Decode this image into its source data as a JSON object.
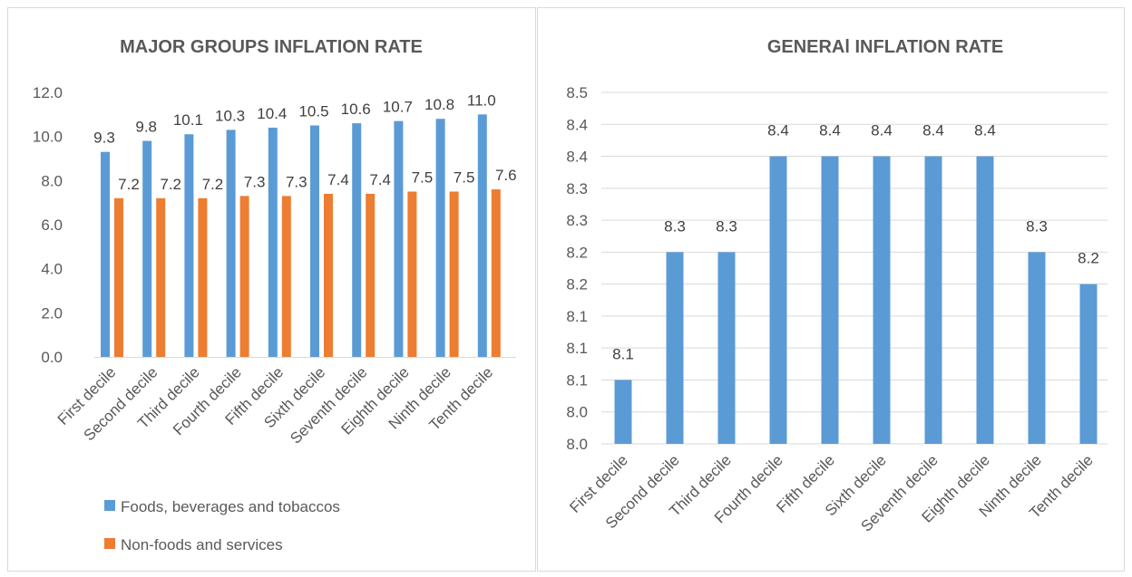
{
  "chart_data": [
    {
      "type": "bar",
      "title": "MAJOR GROUPS  INFLATION  RATE",
      "categories": [
        "First decile",
        "Second decile",
        "Third decile",
        "Fourth decile",
        "Fifth decile",
        "Sixth decile",
        "Seventh decile",
        "Eighth decile",
        "Ninth decile",
        "Tenth decile"
      ],
      "series": [
        {
          "name": "Foods, beverages and tobaccos",
          "color": "#5b9bd5",
          "values": [
            9.3,
            9.8,
            10.1,
            10.3,
            10.4,
            10.5,
            10.6,
            10.7,
            10.8,
            11.0
          ],
          "labels": [
            "9.3",
            "9.8",
            "10.1",
            "10.3",
            "10.4",
            "10.5",
            "10.6",
            "10.7",
            "10.8",
            "11.0"
          ]
        },
        {
          "name": "Non-foods and services",
          "color": "#ed7d31",
          "values": [
            7.2,
            7.2,
            7.2,
            7.3,
            7.3,
            7.4,
            7.4,
            7.5,
            7.5,
            7.6
          ],
          "labels": [
            "7.2",
            "7.2",
            "7.2",
            "7.3",
            "7.3",
            "7.4",
            "7.4",
            "7.5",
            "7.5",
            "7.6"
          ]
        }
      ],
      "ylim": [
        0,
        12
      ],
      "yticks": [
        "0.0",
        "2.0",
        "4.0",
        "6.0",
        "8.0",
        "10.0",
        "12.0"
      ],
      "grid": false,
      "legend": "bottom"
    },
    {
      "type": "bar",
      "title": "GENERAl  INFLATION  RATE",
      "categories": [
        "First decile",
        "Second decile",
        "Third decile",
        "Fourth decile",
        "Fifth decile",
        "Sixth decile",
        "Seventh decile",
        "Eighth decile",
        "Ninth decile",
        "Tenth decile"
      ],
      "series": [
        {
          "name": "",
          "color": "#5b9bd5",
          "values": [
            8.1,
            8.3,
            8.3,
            8.4,
            8.4,
            8.4,
            8.4,
            8.4,
            8.3,
            8.2
          ],
          "labels": [
            "8.1",
            "8.3",
            "8.3",
            "8.4",
            "8.4",
            "8.4",
            "8.4",
            "8.4",
            "8.3",
            "8.2"
          ]
        }
      ],
      "bar_levels": [
        2,
        6,
        6,
        9,
        9,
        9,
        9,
        9,
        6,
        5
      ],
      "yticks": [
        "8.0",
        "8.0",
        "8.1",
        "8.1",
        "8.1",
        "8.2",
        "8.2",
        "8.3",
        "8.3",
        "8.4",
        "8.4",
        "8.5"
      ],
      "grid": true,
      "legend": "none"
    }
  ]
}
